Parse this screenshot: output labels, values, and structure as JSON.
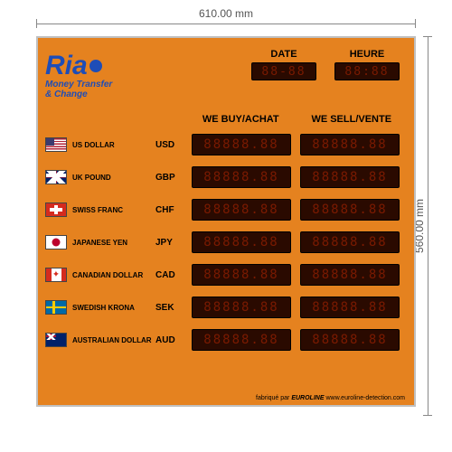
{
  "dimensions": {
    "width": "610.00 mm",
    "height": "560.00 mm"
  },
  "logo": {
    "brand": "Ria",
    "tagline1": "Money Transfer",
    "tagline2": "& Change"
  },
  "datetime": {
    "date_label": "DATE",
    "date_value": "88-88",
    "time_label": "HEURE",
    "time_value": "88:88"
  },
  "column_headers": {
    "buy": "WE BUY/ACHAT",
    "sell": "WE SELL/VENTE"
  },
  "led_placeholder": "88888.88",
  "currencies": [
    {
      "name": "US  DOLLAR",
      "code": "USD",
      "flag": "us"
    },
    {
      "name": "UK  POUND",
      "code": "GBP",
      "flag": "uk"
    },
    {
      "name": "SWISS FRANC",
      "code": "CHF",
      "flag": "ch"
    },
    {
      "name": "JAPANESE  YEN",
      "code": "JPY",
      "flag": "jp"
    },
    {
      "name": "CANADIAN DOLLAR",
      "code": "CAD",
      "flag": "ca"
    },
    {
      "name": "SWEDISH KRONA",
      "code": "SEK",
      "flag": "se"
    },
    {
      "name": "AUSTRALIAN DOLLAR",
      "code": "AUD",
      "flag": "au"
    }
  ],
  "footer": {
    "prefix": "fabriqué par",
    "brand": "EUROLINE",
    "url": "www.euroline-detection.com"
  },
  "colors": {
    "board_bg": "#e5821f",
    "logo_blue": "#1e4db7",
    "led_bg": "#2a0a00",
    "led_fg": "#7a1a00"
  }
}
